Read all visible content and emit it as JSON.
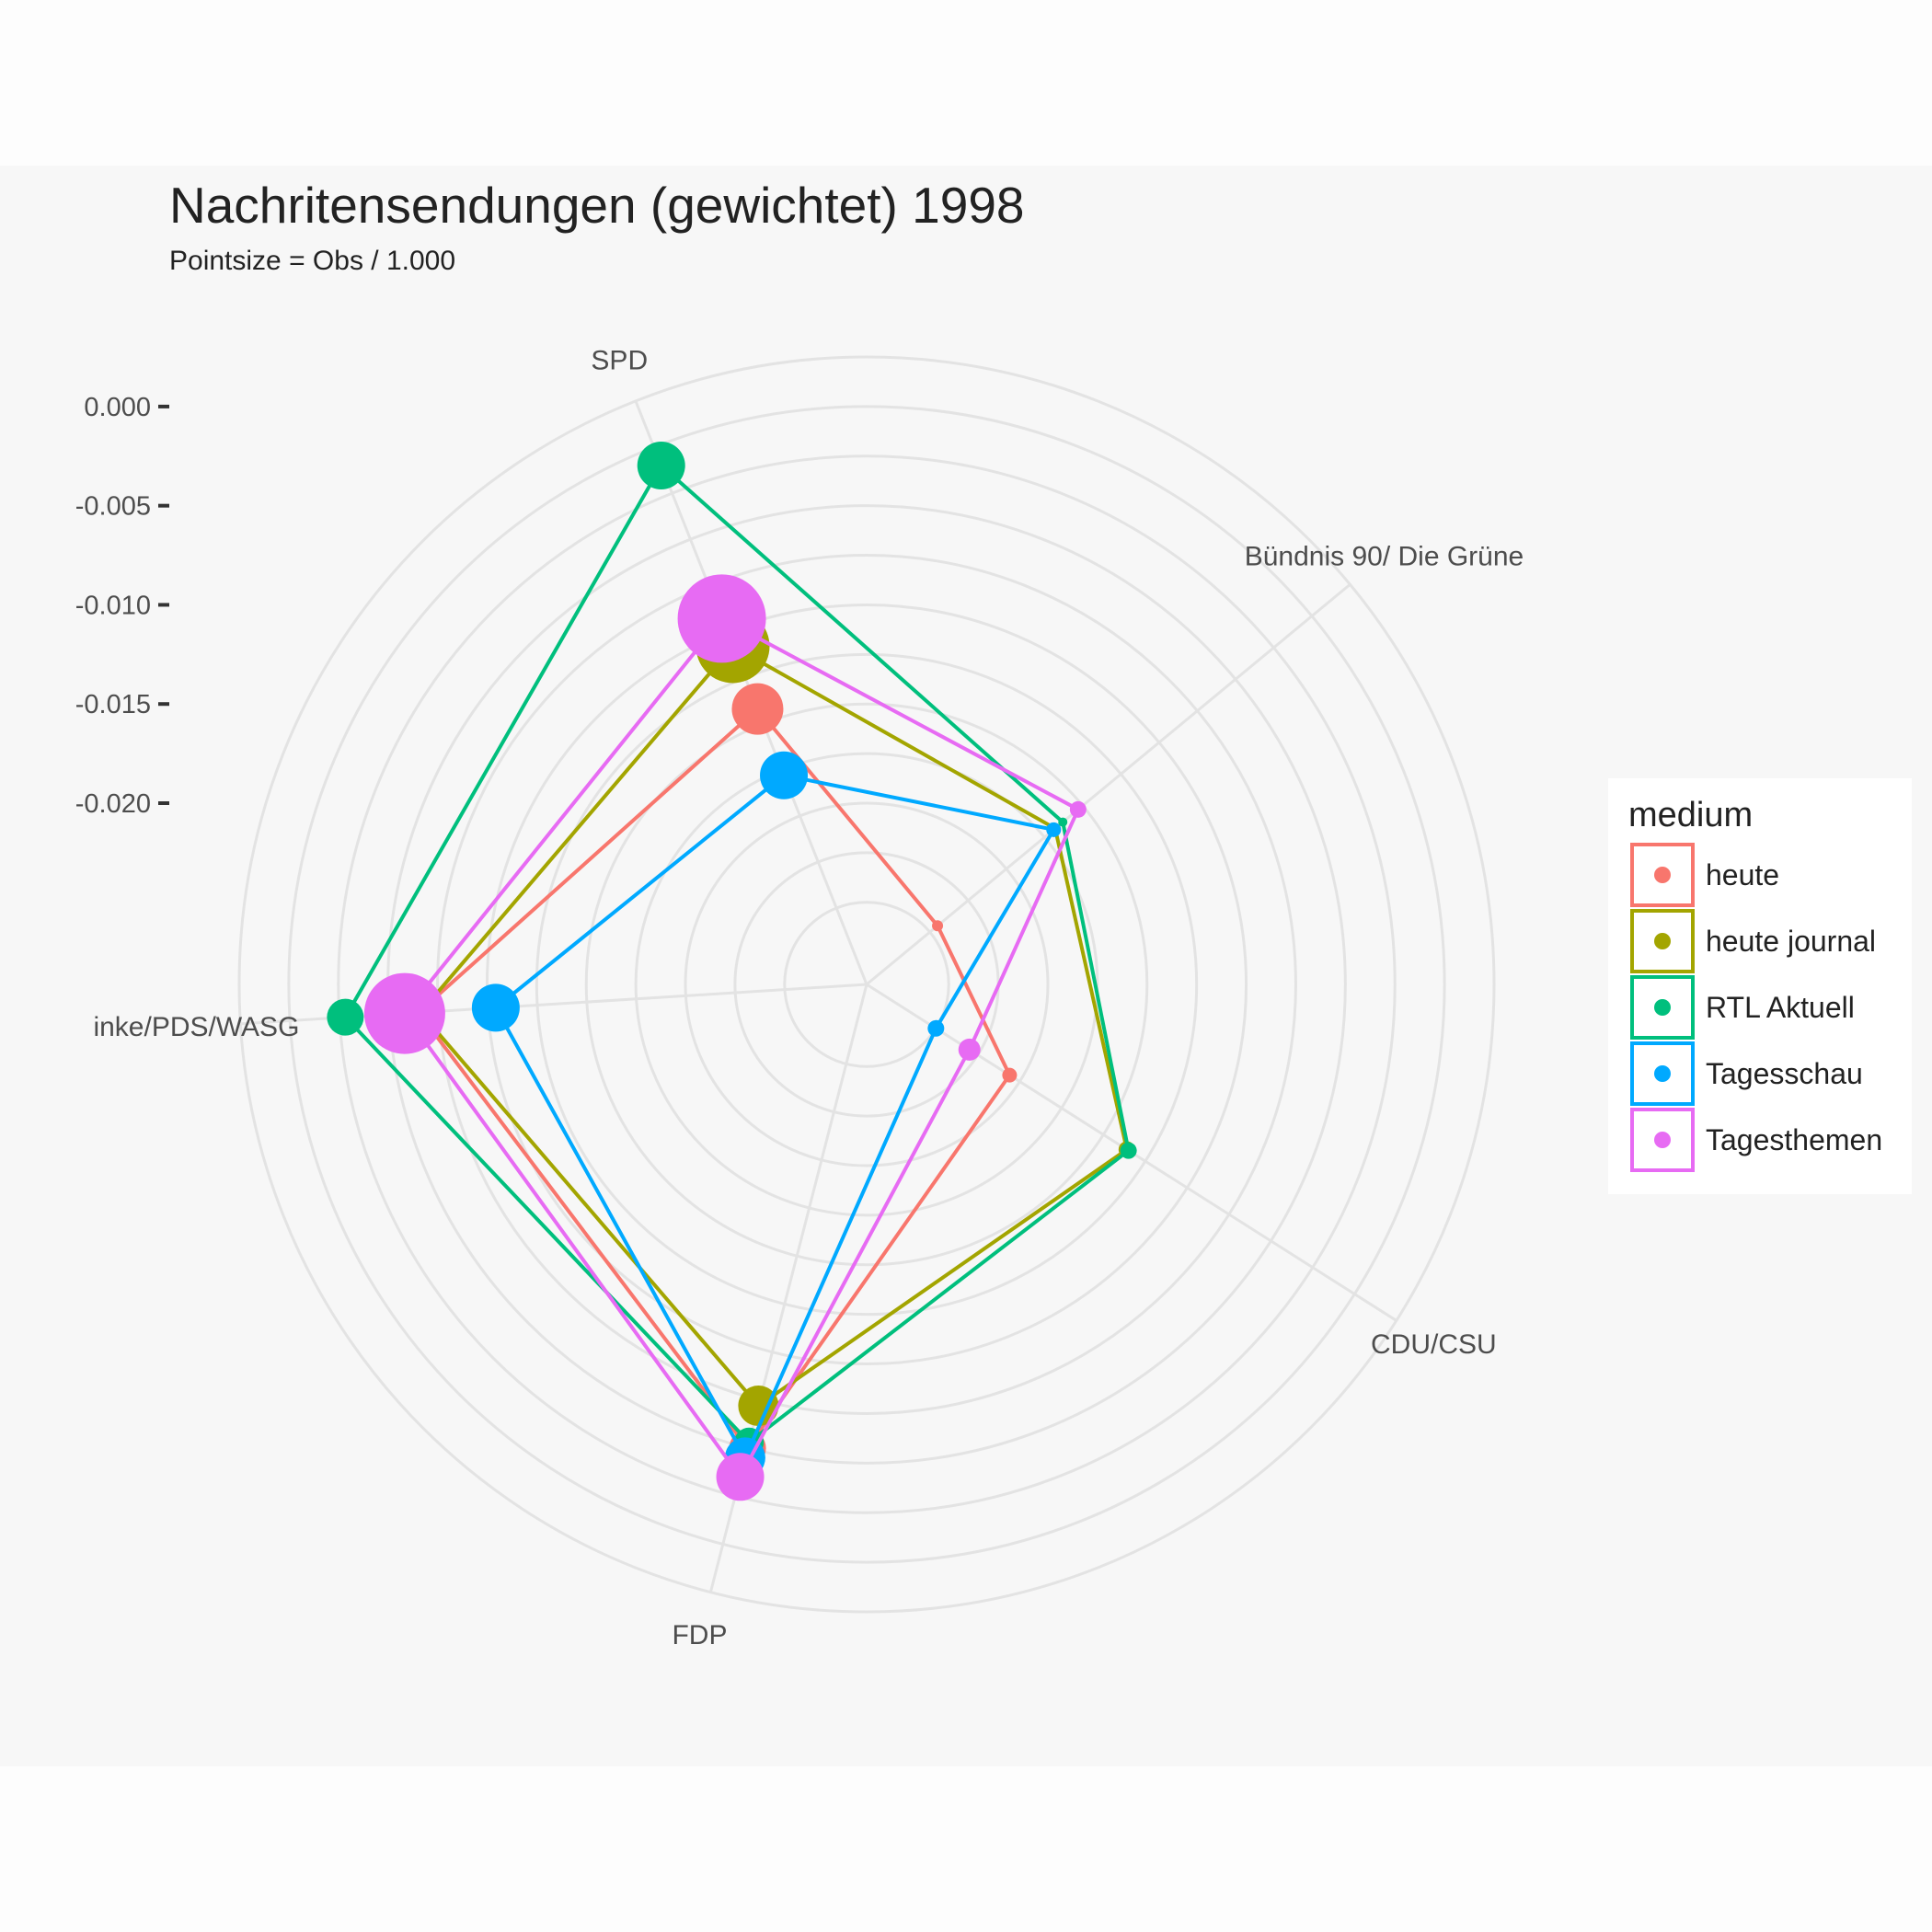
{
  "chart_data": {
    "type": "radar",
    "title": "Nachritensendungen (gewichtet) 1998",
    "subtitle": "Pointsize = Obs / 1.000",
    "axes": [
      "SPD",
      "Bündnis 90/ Die Grüne",
      "CDU/CSU",
      "FDP",
      "inke/PDS/WASG"
    ],
    "r_ticks": [
      0.0,
      -0.005,
      -0.01,
      -0.015,
      -0.02
    ],
    "r_tick_labels": [
      "0.000",
      "-0.005",
      "-0.010",
      "-0.015",
      "-0.020"
    ],
    "r_range": [
      -0.0245,
      0.0025
    ],
    "grid": true,
    "legend": {
      "title": "medium",
      "position": "right"
    },
    "series": [
      {
        "name": "heute",
        "color": "#F8766D",
        "values": [
          -0.0142,
          -0.0245,
          -0.0206,
          -0.005,
          -0.0065
        ],
        "sizes": [
          28,
          6,
          8,
          20,
          26
        ]
      },
      {
        "name": "heute journal",
        "color": "#A3A500",
        "values": [
          -0.0108,
          -0.0168,
          -0.0136,
          -0.0072,
          -0.0066
        ],
        "sizes": [
          40,
          6,
          9,
          22,
          24
        ]
      },
      {
        "name": "RTL Aktuell",
        "color": "#00BF7D",
        "values": [
          -0.001,
          -0.0163,
          -0.0135,
          -0.0053,
          -0.0028
        ],
        "sizes": [
          26,
          5,
          9,
          16,
          20
        ]
      },
      {
        "name": "Tagesschau",
        "color": "#00A9FF",
        "values": [
          -0.0178,
          -0.0169,
          -0.025,
          -0.0045,
          -0.0104
        ],
        "sizes": [
          26,
          8,
          9,
          22,
          26
        ]
      },
      {
        "name": "Tagesthemen",
        "color": "#E76BF3",
        "values": [
          -0.0093,
          -0.0153,
          -0.023,
          -0.0035,
          -0.0058
        ],
        "sizes": [
          48,
          9,
          12,
          26,
          44
        ]
      }
    ]
  }
}
